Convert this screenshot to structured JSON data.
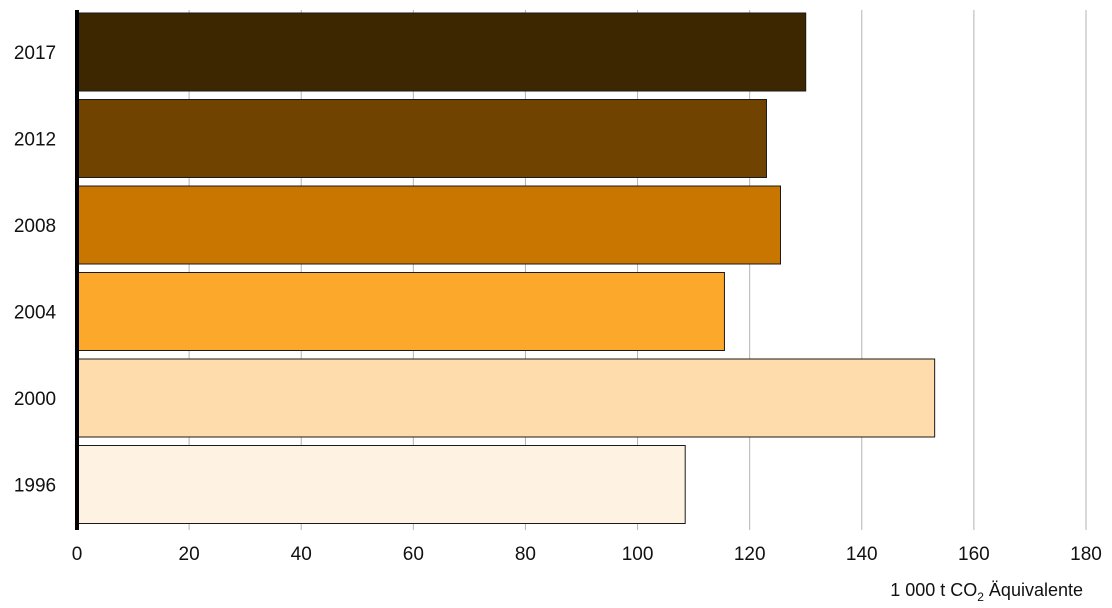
{
  "chart_data": {
    "type": "bar",
    "orientation": "horizontal",
    "categories": [
      "2017",
      "2012",
      "2008",
      "2004",
      "2000",
      "1996"
    ],
    "values": [
      130,
      123,
      125.5,
      115.5,
      153,
      108.5
    ],
    "colors": [
      "#3d2700",
      "#704300",
      "#c87600",
      "#fca82a",
      "#fedcab",
      "#fef3e2"
    ],
    "xlim": [
      0,
      180
    ],
    "xticks": [
      0,
      20,
      40,
      60,
      80,
      100,
      120,
      140,
      160,
      180
    ],
    "xlabel": {
      "prefix": "1 000 t CO",
      "subscript": "2",
      "suffix": " Äquivalente"
    },
    "grid": "vertical",
    "legend": "none"
  }
}
